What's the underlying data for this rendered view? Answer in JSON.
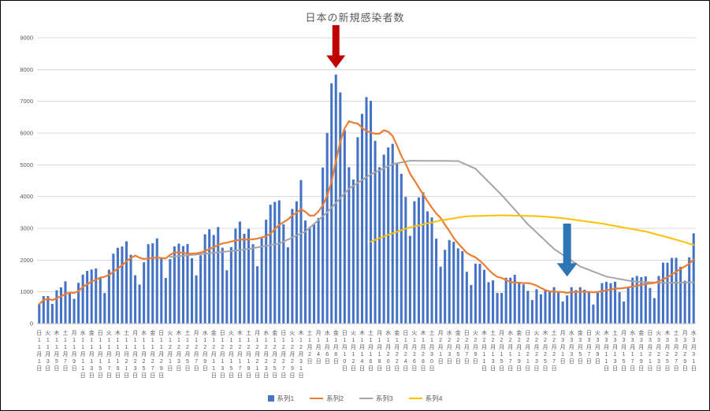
{
  "title": "日本の新規感染者数",
  "legend": [
    {
      "name": "系列1",
      "type": "bar",
      "color": "#4472C4"
    },
    {
      "name": "系列2",
      "type": "line",
      "color": "#ED7D31"
    },
    {
      "name": "系列3",
      "type": "line",
      "color": "#A5A5A5"
    },
    {
      "name": "系列4",
      "type": "line",
      "color": "#FFC000"
    }
  ],
  "chart_data": {
    "type": "bar",
    "title": "日本の新規感染者数",
    "grid": true,
    "legend_position": "bottom",
    "y_axis": {
      "min": 0,
      "max": 9000,
      "tick_interval": 1000,
      "ticks": [
        0,
        1000,
        2000,
        3000,
        4000,
        5000,
        6000,
        7000,
        8000,
        9000
      ]
    },
    "x_axis": {
      "label_every_n_days": 2,
      "weekday_chars": [
        "日",
        "月",
        "火",
        "水",
        "木",
        "金",
        "土"
      ],
      "start_weekday_index": 0,
      "month_suffix": "月",
      "day_suffix": "日",
      "months": [
        {
          "month": 11,
          "days": 30
        },
        {
          "month": 12,
          "days": 31
        },
        {
          "month": 1,
          "days": 31
        },
        {
          "month": 2,
          "days": 28
        },
        {
          "month": 3,
          "days": 31
        }
      ]
    },
    "series1": {
      "name": "系列1",
      "type": "bar",
      "color": "#4472C4",
      "values": [
        614,
        869,
        867,
        620,
        1050,
        1141,
        1331,
        955,
        780,
        1284,
        1543,
        1660,
        1704,
        1737,
        1440,
        963,
        1699,
        2201,
        2386,
        2427,
        2592,
        2168,
        1520,
        1229,
        1930,
        2501,
        2529,
        2684,
        2058,
        1438,
        2030,
        2430,
        2518,
        2442,
        2508,
        2058,
        1521,
        2152,
        2811,
        2972,
        2790,
        3041,
        2388,
        1680,
        2410,
        2993,
        3211,
        2829,
        2982,
        2501,
        1806,
        2688,
        3271,
        3742,
        3832,
        3881,
        3127,
        2403,
        3611,
        3852,
        4520,
        3246,
        3044,
        3127,
        3325,
        4915,
        6004,
        7568,
        7844,
        7278,
        6093,
        4925,
        4538,
        5870,
        6605,
        7133,
        7014,
        5756,
        4925,
        5321,
        5549,
        5662,
        5045,
        4717,
        3988,
        2764,
        3853,
        3973,
        4133,
        3534,
        3344,
        2673,
        1792,
        2324,
        2631,
        2576,
        2371,
        2280,
        1631,
        1216,
        1887,
        1882,
        1693,
        1304,
        1362,
        965,
        966,
        1443,
        1448,
        1538,
        1301,
        1234,
        1032,
        741,
        1083,
        921,
        1076,
        1029,
        1148,
        999,
        697,
        888,
        1148,
        1054,
        1148,
        1066,
        999,
        600,
        974,
        1277,
        1316,
        1271,
        1320,
        989,
        695,
        1133,
        1448,
        1500,
        1463,
        1486,
        1121,
        800,
        1500,
        1918,
        1917,
        2070,
        2072,
        1785,
        1348,
        2087,
        2843
      ]
    },
    "series2": {
      "name": "系列2",
      "type": "line",
      "color": "#ED7D31",
      "derivation": "7-day trailing moving average of 系列1",
      "window": 7
    },
    "series3": {
      "name": "系列3",
      "type": "line",
      "color": "#A5A5A5",
      "control_points": [
        [
          30,
          2100
        ],
        [
          38,
          2200
        ],
        [
          47,
          2330
        ],
        [
          55,
          2520
        ],
        [
          61,
          2900
        ],
        [
          66,
          3500
        ],
        [
          71,
          4250
        ],
        [
          76,
          4700
        ],
        [
          81,
          5020
        ],
        [
          85,
          5130
        ],
        [
          96,
          5120
        ],
        [
          100,
          4880
        ],
        [
          106,
          4050
        ],
        [
          112,
          3130
        ],
        [
          118,
          2350
        ],
        [
          124,
          1800
        ],
        [
          130,
          1480
        ],
        [
          136,
          1330
        ],
        [
          143,
          1280
        ],
        [
          150,
          1300
        ]
      ]
    },
    "series4": {
      "name": "系列4",
      "type": "line",
      "color": "#FFC000",
      "control_points": [
        [
          76,
          2580
        ],
        [
          80,
          2800
        ],
        [
          85,
          3030
        ],
        [
          92,
          3250
        ],
        [
          98,
          3380
        ],
        [
          106,
          3410
        ],
        [
          115,
          3380
        ],
        [
          120,
          3320
        ],
        [
          129,
          3150
        ],
        [
          139,
          2900
        ],
        [
          145,
          2680
        ],
        [
          150,
          2480
        ]
      ]
    },
    "annotations": [
      {
        "name": "red-down-arrow",
        "shape": "block-arrow-down",
        "color": "#C00000",
        "day_index": 68,
        "from_value": 9400,
        "to_value": 8050,
        "stem_width": 9,
        "head_width": 24,
        "head_height": 16
      },
      {
        "name": "blue-down-arrow",
        "shape": "block-arrow-down",
        "color": "#2E75B6",
        "day_index": 121,
        "from_value": 3150,
        "to_value": 1480,
        "stem_width": 10,
        "head_width": 26,
        "head_height": 17
      }
    ]
  }
}
